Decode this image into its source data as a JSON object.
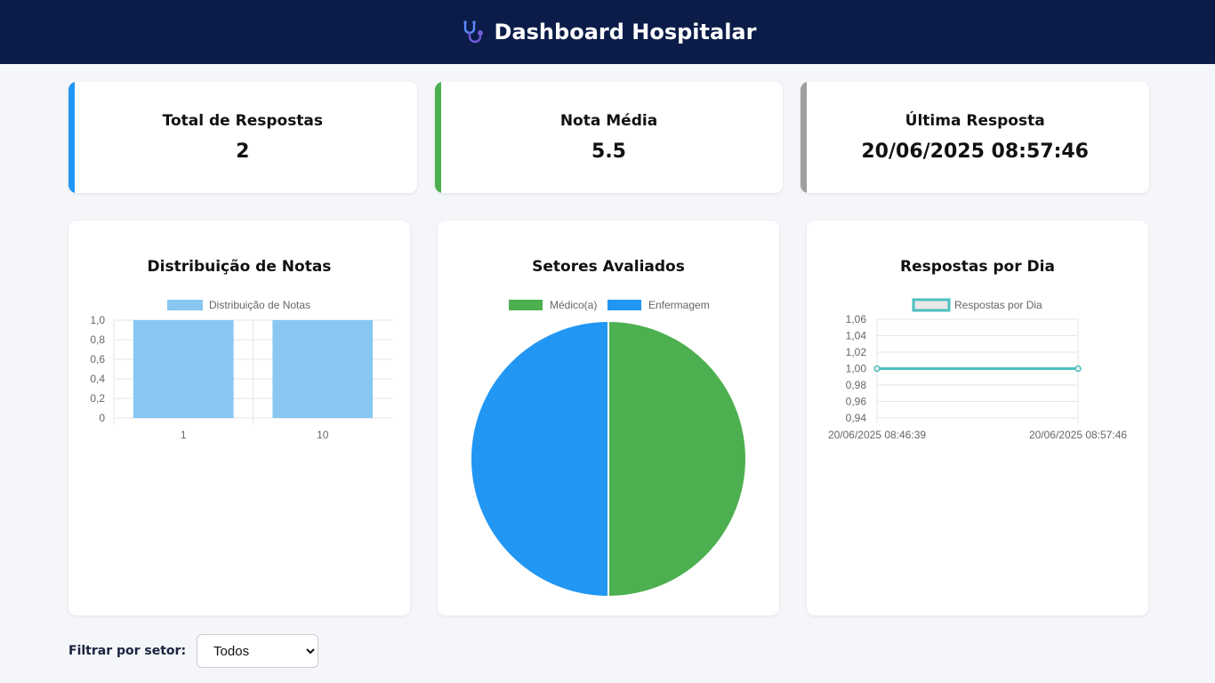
{
  "header": {
    "title": "Dashboard Hospitalar",
    "icon": "stethoscope-icon"
  },
  "kpis": [
    {
      "label": "Total de Respostas",
      "value": "2",
      "accent": "#2196f3"
    },
    {
      "label": "Nota Média",
      "value": "5.5",
      "accent": "#4caf50"
    },
    {
      "label": "Última Resposta",
      "value": "20/06/2025 08:57:46",
      "accent": "#9e9e9e"
    }
  ],
  "charts": {
    "dist": {
      "title": "Distribuição de Notas"
    },
    "setores": {
      "title": "Setores Avaliados"
    },
    "dia": {
      "title": "Respostas por Dia"
    }
  },
  "chart_data": [
    {
      "type": "bar",
      "title": "Distribuição de Notas",
      "categories": [
        "1",
        "10"
      ],
      "series": [
        {
          "name": "Distribuição de Notas",
          "values": [
            1,
            1
          ],
          "color": "#87c7f2"
        }
      ],
      "ylim": [
        0,
        1.0
      ],
      "yticks": [
        "1,0",
        "0,8",
        "0,6",
        "0,4",
        "0,2",
        "0"
      ],
      "legend": "top"
    },
    {
      "type": "pie",
      "title": "Setores Avaliados",
      "labels": [
        "Médico(a)",
        "Enfermagem"
      ],
      "values": [
        1,
        1
      ],
      "colors": [
        "#4caf50",
        "#2196f3"
      ],
      "legend": "top"
    },
    {
      "type": "line",
      "title": "Respostas por Dia",
      "x": [
        "20/06/2025 08:46:39",
        "20/06/2025 08:57:46"
      ],
      "series": [
        {
          "name": "Respostas por Dia",
          "values": [
            1,
            1
          ],
          "color": "#4bc0c0"
        }
      ],
      "ylim": [
        0.94,
        1.06
      ],
      "yticks": [
        "1,06",
        "1,04",
        "1,02",
        "1,00",
        "0,98",
        "0,96",
        "0,94"
      ],
      "legend": "top"
    }
  ],
  "filter": {
    "label": "Filtrar por setor:",
    "selected": "Todos"
  }
}
